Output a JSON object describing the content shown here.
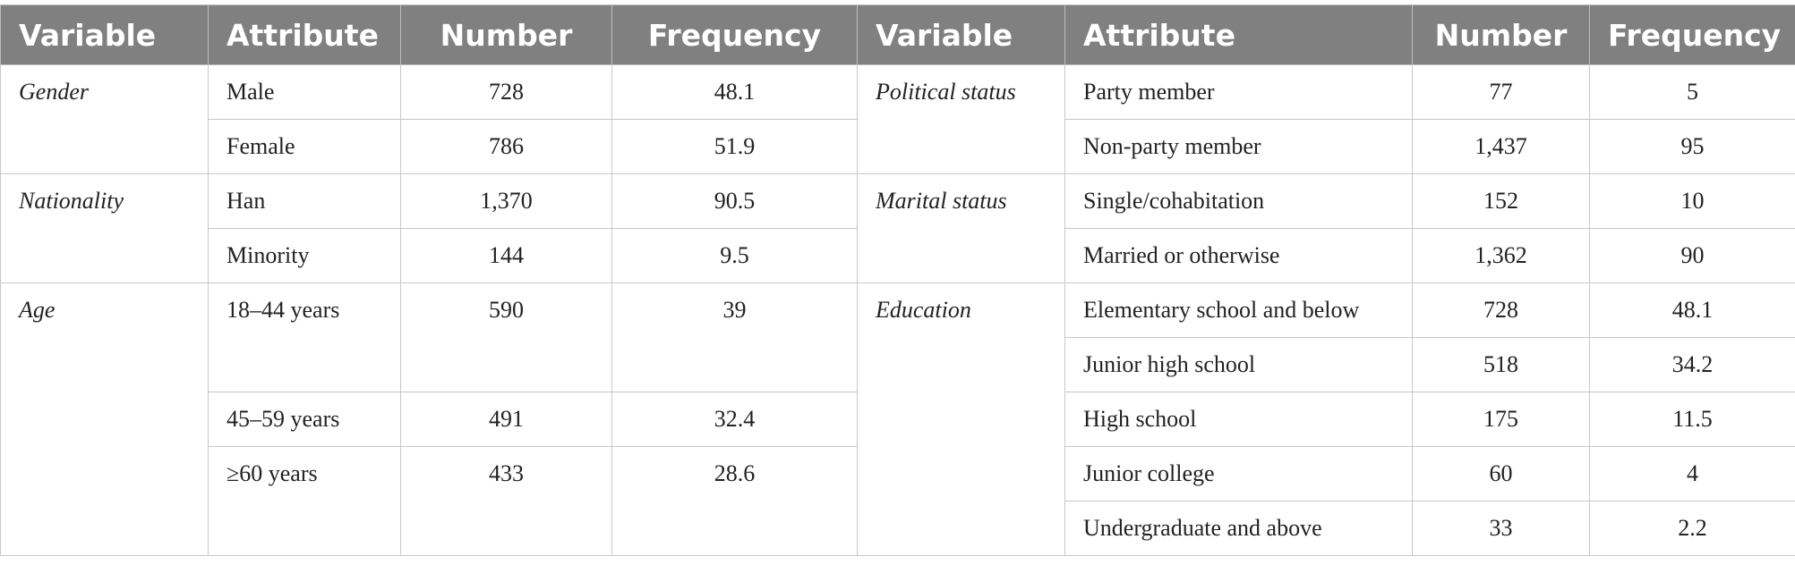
{
  "header": [
    "Variable",
    "Attribute",
    "Number",
    "Frequency",
    "Variable",
    "Attribute",
    "Number",
    "Frequency"
  ],
  "left": [
    {
      "variable": "Gender",
      "items": [
        {
          "attribute": "Male",
          "number": "728",
          "frequency": "48.1"
        },
        {
          "attribute": "Female",
          "number": "786",
          "frequency": "51.9"
        }
      ]
    },
    {
      "variable": "Nationality",
      "items": [
        {
          "attribute": "Han",
          "number": "1,370",
          "frequency": "90.5"
        },
        {
          "attribute": "Minority",
          "number": "144",
          "frequency": "9.5"
        }
      ]
    },
    {
      "variable": "Age",
      "items": [
        {
          "attribute": "18–44 years",
          "number": "590",
          "frequency": "39"
        },
        {
          "attribute": "45–59 years",
          "number": "491",
          "frequency": "32.4"
        },
        {
          "attribute": "≥60 years",
          "number": "433",
          "frequency": "28.6"
        }
      ]
    }
  ],
  "right": [
    {
      "variable": "Political status",
      "items": [
        {
          "attribute": "Party member",
          "number": "77",
          "frequency": "5"
        },
        {
          "attribute": "Non-party member",
          "number": "1,437",
          "frequency": "95"
        }
      ]
    },
    {
      "variable": "Marital status",
      "items": [
        {
          "attribute": "Single/cohabitation",
          "number": "152",
          "frequency": "10"
        },
        {
          "attribute": "Married or otherwise",
          "number": "1,362",
          "frequency": "90"
        }
      ]
    },
    {
      "variable": "Education",
      "items": [
        {
          "attribute": "Elementary school and below",
          "number": "728",
          "frequency": "48.1"
        },
        {
          "attribute": "Junior high school",
          "number": "518",
          "frequency": "34.2"
        },
        {
          "attribute": "High school",
          "number": "175",
          "frequency": "11.5"
        },
        {
          "attribute": "Junior college",
          "number": "60",
          "frequency": "4"
        },
        {
          "attribute": "Undergraduate and above",
          "number": "33",
          "frequency": "2.2"
        }
      ]
    }
  ]
}
